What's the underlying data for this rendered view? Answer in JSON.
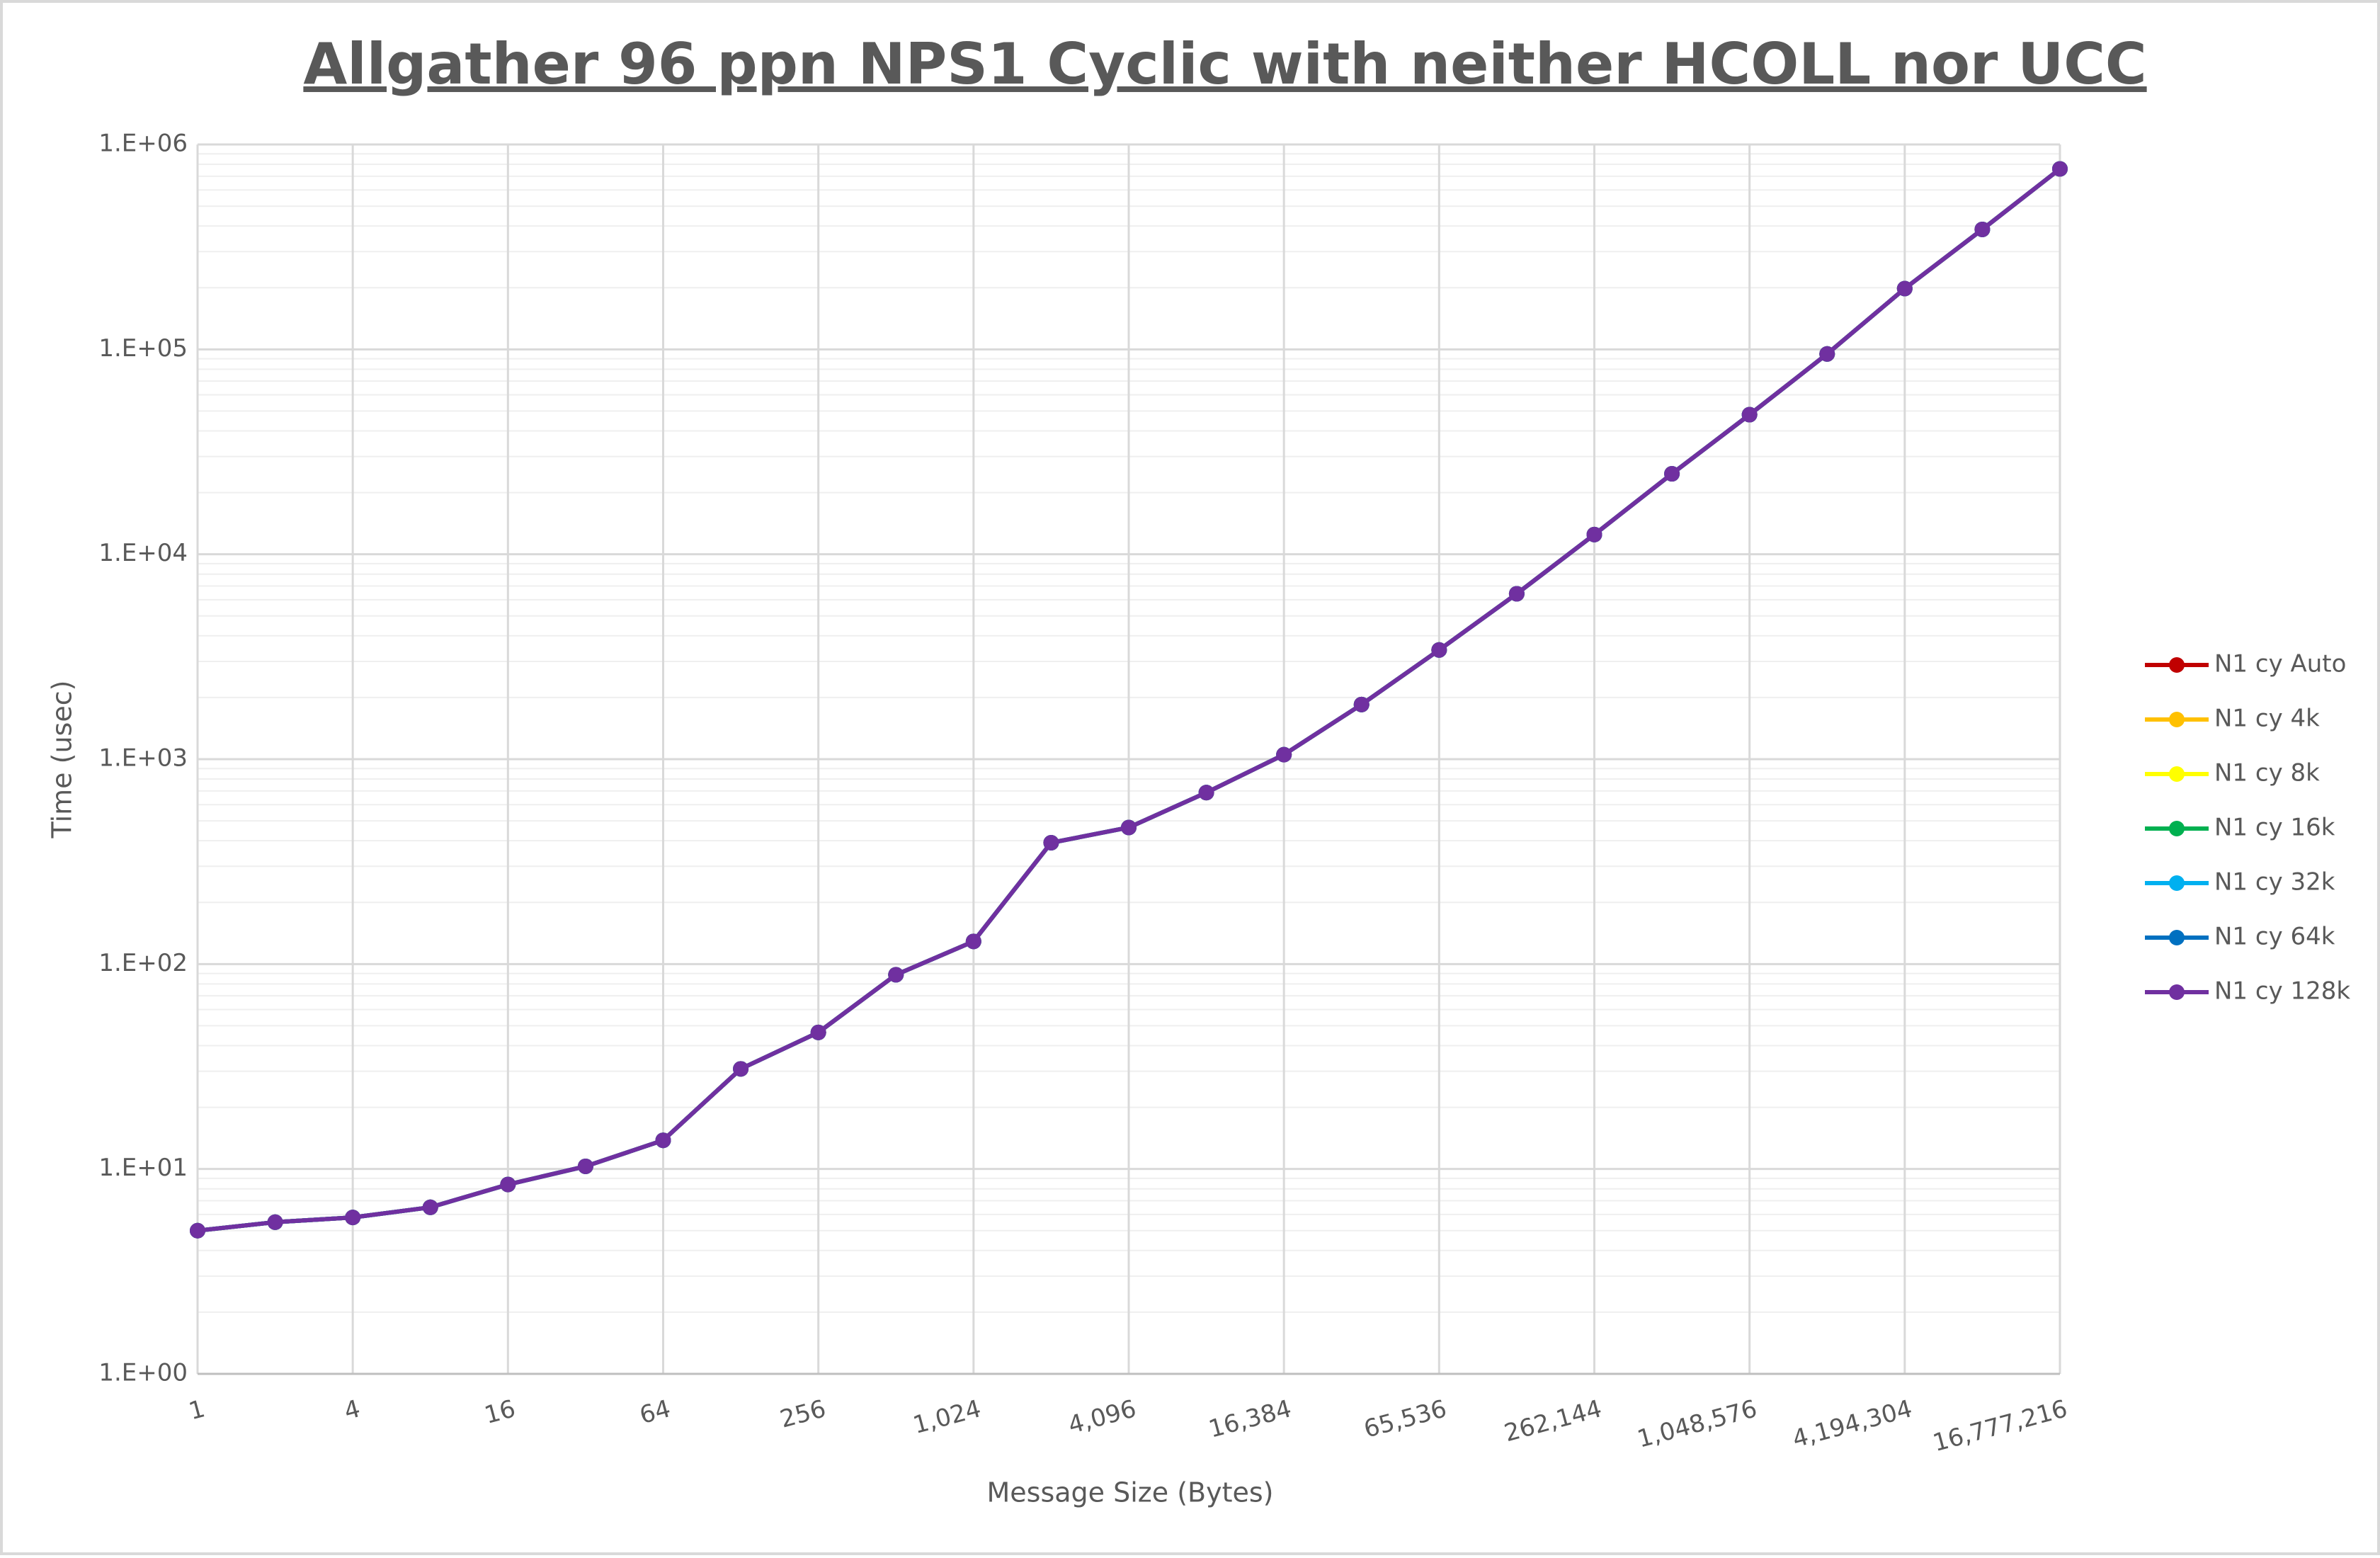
{
  "chart_data": {
    "type": "line",
    "title": "Allgather 96 ppn NPS1 Cyclic with neither HCOLL nor UCC",
    "x_label": "Message Size (Bytes)",
    "y_label": "Time (usec)",
    "x_log_base": 2,
    "y_log_base": 10,
    "grid": true,
    "legend": "right",
    "x": [
      1,
      2,
      4,
      8,
      16,
      32,
      64,
      128,
      256,
      512,
      1024,
      2048,
      4096,
      8192,
      16384,
      32768,
      65536,
      131072,
      262144,
      524288,
      1048576,
      2097152,
      4194304,
      8388608,
      16777216
    ],
    "xlim": [
      1,
      16777216
    ],
    "xticks": [
      1,
      4,
      16,
      64,
      256,
      {
        "value": 1024,
        "label": "1,024"
      },
      {
        "value": 4096,
        "label": "4,096"
      },
      {
        "value": 16384,
        "label": "16,384"
      },
      {
        "value": 65536,
        "label": "65,536"
      },
      {
        "value": 262144,
        "label": "262,144"
      },
      {
        "value": 1048576,
        "label": "1,048,576"
      },
      {
        "value": 4194304,
        "label": "4,194,304"
      },
      {
        "value": 16777216,
        "label": "16,777,216"
      }
    ],
    "ylim": [
      1,
      1000000
    ],
    "yticks": [
      {
        "value": 1,
        "label": "1.E+00"
      },
      {
        "value": 10,
        "label": "1.E+01"
      },
      {
        "value": 100,
        "label": "1.E+02"
      },
      {
        "value": 1000,
        "label": "1.E+03"
      },
      {
        "value": 10000,
        "label": "1.E+04"
      },
      {
        "value": 100000,
        "label": "1.E+05"
      },
      {
        "value": 1000000,
        "label": "1.E+06"
      }
    ],
    "series": [
      {
        "name": "N1 cy Auto",
        "color": "#c00000",
        "values": [
          5.0,
          5.5,
          5.8,
          6.5,
          8.4,
          10.3,
          13.8,
          30.8,
          46.4,
          88.7,
          129,
          391,
          464,
          687,
          1052,
          1848,
          3412,
          6415,
          12480,
          24700,
          48000,
          95000,
          198000,
          385000,
          760000
        ]
      },
      {
        "name": "N1 cy 4k",
        "color": "#ffc000",
        "values": [
          5.0,
          5.5,
          5.8,
          6.5,
          8.4,
          10.3,
          13.8,
          30.8,
          46.4,
          88.7,
          129,
          391,
          464,
          687,
          1052,
          1848,
          3412,
          6415,
          12480,
          24700,
          48000,
          95000,
          198000,
          385000,
          760000
        ]
      },
      {
        "name": "N1 cy 8k",
        "color": "#ffff00",
        "values": [
          5.0,
          5.5,
          5.8,
          6.5,
          8.4,
          10.3,
          13.8,
          30.8,
          46.4,
          88.7,
          129,
          391,
          464,
          687,
          1052,
          1848,
          3412,
          6415,
          12480,
          24700,
          48000,
          95000,
          198000,
          385000,
          760000
        ]
      },
      {
        "name": "N1 cy 16k",
        "color": "#00b050",
        "values": [
          5.0,
          5.5,
          5.8,
          6.5,
          8.4,
          10.3,
          13.8,
          30.8,
          46.4,
          88.7,
          129,
          391,
          464,
          687,
          1052,
          1848,
          3412,
          6415,
          12480,
          24700,
          48000,
          95000,
          198000,
          385000,
          760000
        ]
      },
      {
        "name": "N1 cy 32k",
        "color": "#00b0f0",
        "values": [
          5.0,
          5.5,
          5.8,
          6.5,
          8.4,
          10.3,
          13.8,
          30.8,
          46.4,
          88.7,
          129,
          391,
          464,
          687,
          1052,
          1848,
          3412,
          6415,
          12480,
          24700,
          48000,
          95000,
          198000,
          385000,
          760000
        ]
      },
      {
        "name": "N1 cy 64k",
        "color": "#0070c0",
        "values": [
          5.0,
          5.5,
          5.8,
          6.5,
          8.4,
          10.3,
          13.8,
          30.8,
          46.4,
          88.7,
          129,
          391,
          464,
          687,
          1052,
          1848,
          3412,
          6415,
          12480,
          24700,
          48000,
          95000,
          198000,
          385000,
          760000
        ]
      },
      {
        "name": "N1 cy 128k",
        "color": "#7030a0",
        "values": [
          5.0,
          5.5,
          5.8,
          6.5,
          8.4,
          10.3,
          13.8,
          30.8,
          46.4,
          88.7,
          129,
          391,
          464,
          687,
          1052,
          1848,
          3412,
          6415,
          12480,
          24700,
          48000,
          95000,
          198000,
          385000,
          760000
        ]
      }
    ]
  }
}
